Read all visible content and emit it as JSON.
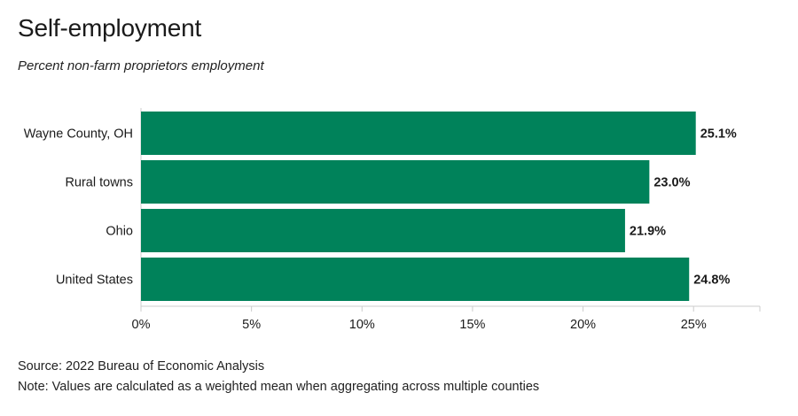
{
  "header": {
    "title": "Self-employment",
    "subtitle": "Percent non-farm proprietors employment"
  },
  "footer": {
    "source": "Source: 2022 Bureau of Economic Analysis",
    "note": "Note: Values are calculated as a weighted mean when aggregating across multiple counties"
  },
  "colors": {
    "bar": "#00825a",
    "axis": "#cccccc",
    "text": "#1a1a1a"
  },
  "chart_data": {
    "type": "bar",
    "orientation": "horizontal",
    "title": "Self-employment",
    "subtitle": "Percent non-farm proprietors employment",
    "categories": [
      "Wayne County, OH",
      "Rural towns",
      "Ohio",
      "United States"
    ],
    "values": [
      25.1,
      23.0,
      21.9,
      24.8
    ],
    "value_labels": [
      "25.1%",
      "23.0%",
      "21.9%",
      "24.8%"
    ],
    "xlim": [
      0,
      28
    ],
    "xticks": [
      0,
      5,
      10,
      15,
      20,
      25
    ],
    "xtick_labels": [
      "0%",
      "5%",
      "10%",
      "15%",
      "20%",
      "25%"
    ],
    "grid": false,
    "legend": "none"
  }
}
